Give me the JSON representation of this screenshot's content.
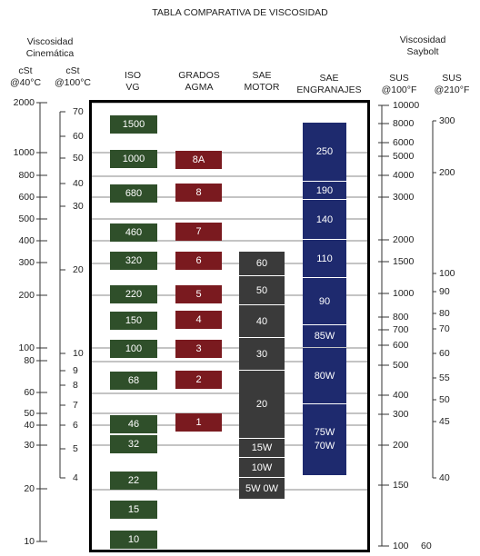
{
  "title": "TABLA COMPARATIVA DE VISCOSIDAD",
  "headers": {
    "viscosidad_cinematica": "Viscosidad\nCinemática",
    "cst_40": "cSt\n@40°C",
    "cst_100": "cSt\n@100°C",
    "iso": "ISO\nVG",
    "agma": "GRADOS\nAGMA",
    "sae_motor": "SAE\nMOTOR",
    "sae_engranajes": "SAE\nENGRANAJES",
    "viscosidad_saybolt": "Viscosidad\nSaybolt",
    "sus_100": "SUS\n@100°F",
    "sus_210": "SUS\n@210°F"
  },
  "colors": {
    "iso": "#2f4f2a",
    "agma": "#7a1a1f",
    "motor": "#3a3a3a",
    "gear": "#1e2a6e",
    "frame": "#000000",
    "grid": "#888888"
  },
  "scales": {
    "cst40": [
      "2000",
      "1000",
      "800",
      "600",
      "500",
      "400",
      "300",
      "200",
      "100",
      "80",
      "60",
      "50",
      "40",
      "30",
      "20",
      "10"
    ],
    "cst100": [
      "70",
      "60",
      "50",
      "40",
      "30",
      "20",
      "10",
      "9",
      "8",
      "7",
      "6",
      "5",
      "4"
    ],
    "sus100": [
      "10000",
      "8000",
      "6000",
      "5000",
      "4000",
      "3000",
      "2000",
      "1500",
      "1000",
      "800",
      "700",
      "600",
      "500",
      "400",
      "300",
      "200",
      "150",
      "100",
      "60"
    ],
    "sus210": [
      "300",
      "200",
      "100",
      "90",
      "80",
      "70",
      "60",
      "55",
      "50",
      "45",
      "40",
      "60"
    ]
  },
  "iso_grades": [
    "1500",
    "1000",
    "680",
    "460",
    "320",
    "220",
    "150",
    "100",
    "68",
    "46",
    "32",
    "22",
    "15",
    "10"
  ],
  "agma_grades": [
    "8A",
    "8",
    "7",
    "6",
    "5",
    "4",
    "3",
    "2",
    "1"
  ],
  "sae_motor": [
    "60",
    "50",
    "40",
    "30",
    "20",
    "15W",
    "10W",
    "5W  0W"
  ],
  "sae_gear": [
    "250",
    "190",
    "140",
    "110",
    "90",
    "85W",
    "80W",
    "75W\n70W"
  ]
}
